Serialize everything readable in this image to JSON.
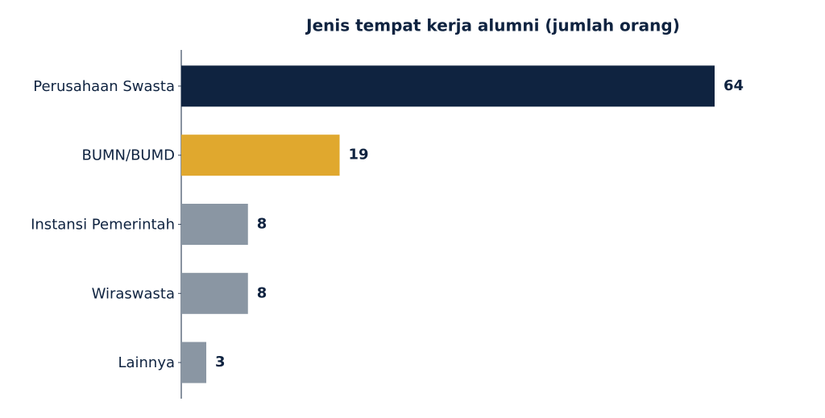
{
  "chart_data": {
    "type": "barh",
    "title": "Jenis tempat kerja alumni (jumlah orang)",
    "categories": [
      "Perusahaan Swasta",
      "BUMN/BUMD",
      "Instansi Pemerintah",
      "Wiraswasta",
      "Lainnya"
    ],
    "values": [
      64,
      19,
      8,
      8,
      3
    ],
    "colors": [
      "#0f2340",
      "#e0a82e",
      "#8a96a3",
      "#8a96a3",
      "#8a96a3"
    ]
  }
}
